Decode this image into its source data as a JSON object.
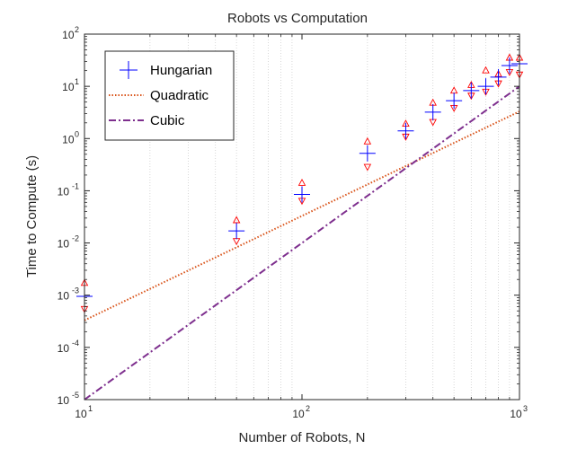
{
  "chart_data": {
    "type": "scatter",
    "title": "Robots vs Computation",
    "xlabel": "Number of Robots, N",
    "ylabel": "Time to Compute (s)",
    "xscale": "log",
    "yscale": "log",
    "xlim": [
      10,
      1000
    ],
    "ylim": [
      1e-05,
      100
    ],
    "x_ticks": [
      {
        "value": 10,
        "base": "10",
        "exp": "1"
      },
      {
        "value": 100,
        "base": "10",
        "exp": "2"
      },
      {
        "value": 1000,
        "base": "10",
        "exp": "3"
      }
    ],
    "y_ticks": [
      {
        "value": 1e-05,
        "base": "10",
        "exp": "-5"
      },
      {
        "value": 0.0001,
        "base": "10",
        "exp": "-4"
      },
      {
        "value": 0.001,
        "base": "10",
        "exp": "-3"
      },
      {
        "value": 0.01,
        "base": "10",
        "exp": "-2"
      },
      {
        "value": 0.1,
        "base": "10",
        "exp": "-1"
      },
      {
        "value": 1,
        "base": "10",
        "exp": "0"
      },
      {
        "value": 10,
        "base": "10",
        "exp": "1"
      },
      {
        "value": 100,
        "base": "10",
        "exp": "2"
      }
    ],
    "grid": "vertical minor dotted",
    "legend_position": "top-left",
    "series": [
      {
        "name": "Hungarian",
        "kind": "markers",
        "color": "#0000ff",
        "marker": "plus",
        "x": [
          10,
          50,
          100,
          200,
          300,
          400,
          500,
          600,
          700,
          800,
          900,
          1000
        ],
        "y": [
          0.00095,
          0.017,
          0.085,
          0.52,
          1.4,
          3.2,
          5.3,
          8.3,
          10,
          15,
          25,
          27
        ]
      },
      {
        "name": "Quadratic",
        "kind": "line",
        "color": "#d95319",
        "style": "dotted",
        "x": [
          10,
          1000
        ],
        "y": [
          0.00033,
          3.3
        ]
      },
      {
        "name": "Cubic",
        "kind": "line",
        "color": "#7e2f8e",
        "style": "dashdot",
        "x": [
          10,
          1000
        ],
        "y": [
          1e-05,
          10
        ]
      }
    ],
    "error_markers": {
      "color": "#ff0000",
      "x": [
        10,
        50,
        100,
        200,
        300,
        400,
        500,
        600,
        700,
        800,
        900,
        1000
      ],
      "upper": [
        0.0017,
        0.027,
        0.14,
        0.87,
        1.9,
        4.8,
        8.2,
        10.5,
        20,
        17,
        35,
        35
      ],
      "lower": [
        0.00055,
        0.011,
        0.065,
        0.29,
        1.1,
        2.1,
        3.9,
        6.7,
        8.0,
        11.5,
        19,
        17
      ]
    }
  }
}
